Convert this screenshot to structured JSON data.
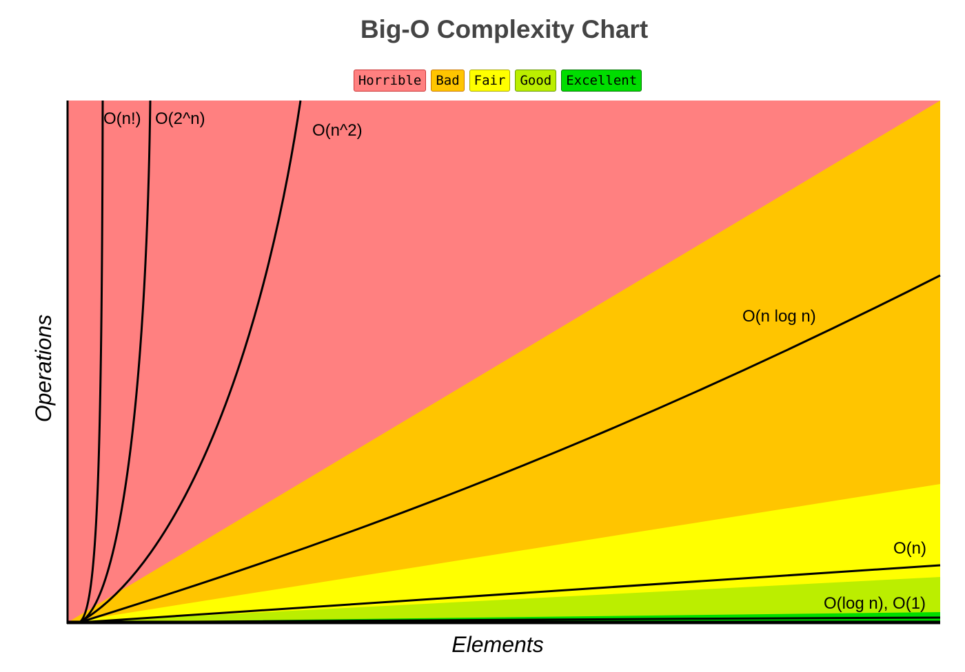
{
  "chart_data": {
    "type": "area",
    "title": "Big-O Complexity Chart",
    "xlabel": "Elements",
    "ylabel": "Operations",
    "legend": [
      {
        "label": "Horrible",
        "color": "#ff8080",
        "border": "#cc3333"
      },
      {
        "label": "Bad",
        "color": "#ffc500",
        "border": "#cc7700"
      },
      {
        "label": "Fair",
        "color": "#ffff00",
        "border": "#aaaa00"
      },
      {
        "label": "Good",
        "color": "#bbee00",
        "border": "#669900"
      },
      {
        "label": "Excellent",
        "color": "#00dd00",
        "border": "#007700"
      }
    ],
    "curves": [
      {
        "name": "O(n!)"
      },
      {
        "name": "O(2^n)"
      },
      {
        "name": "O(n^2)"
      },
      {
        "name": "O(n log n)"
      },
      {
        "name": "O(n)"
      },
      {
        "name": "O(log n), O(1)"
      }
    ]
  }
}
